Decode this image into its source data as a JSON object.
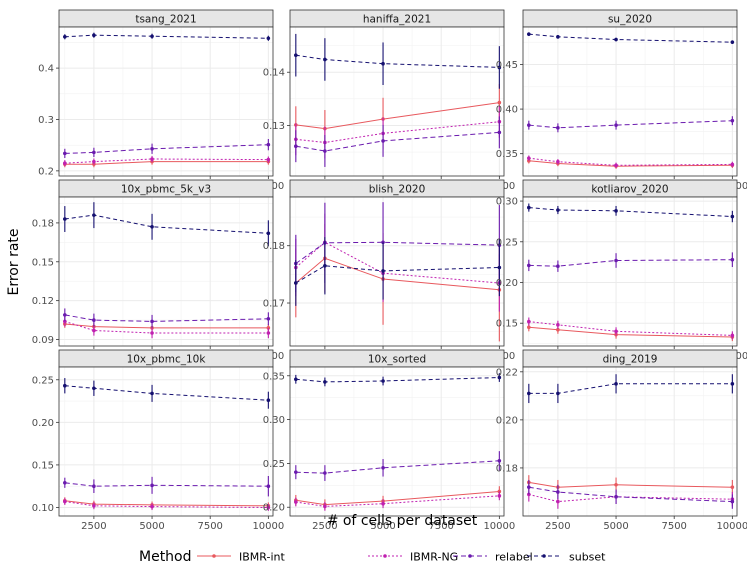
{
  "chart_data": {
    "type": "line",
    "layout": "facet-grid-3x3",
    "ylabel": "Error rate",
    "xlabel": "# of cells per dataset",
    "x": [
      1250,
      2500,
      5000,
      10000
    ],
    "x_ticks": [
      2500,
      5000,
      7500,
      10000
    ],
    "x_tick_labels": [
      "2500",
      "5000",
      "7500",
      "10000"
    ],
    "xlim": [
      1000,
      10200
    ],
    "legend": {
      "title": "Method",
      "position": "bottom",
      "entries": [
        "IBMR-int",
        "IBMR-NG",
        "relabel",
        "subset"
      ]
    },
    "series_styles": [
      {
        "name": "IBMR-int",
        "color": "#E8595E",
        "dash": ""
      },
      {
        "name": "IBMR-NG",
        "color": "#C020B0",
        "dash": "2,2"
      },
      {
        "name": "relabel",
        "color": "#6A1AAE",
        "dash": "5,3"
      },
      {
        "name": "subset",
        "color": "#151070",
        "dash": "4,3"
      }
    ],
    "panels": [
      {
        "title": "tsang_2021",
        "ylim": [
          0.19,
          0.48
        ],
        "y_ticks": [
          0.2,
          0.3,
          0.4
        ],
        "y_tick_labels": [
          "0.2",
          "0.3",
          "0.4"
        ],
        "series": [
          {
            "name": "IBMR-int",
            "values": [
              0.213,
              0.213,
              0.218,
              0.218
            ],
            "err": [
              0.006,
              0.006,
              0.006,
              0.006
            ]
          },
          {
            "name": "IBMR-NG",
            "values": [
              0.215,
              0.218,
              0.223,
              0.222
            ],
            "err": [
              0.006,
              0.006,
              0.006,
              0.006
            ]
          },
          {
            "name": "relabel",
            "values": [
              0.234,
              0.236,
              0.243,
              0.251
            ],
            "err": [
              0.009,
              0.009,
              0.01,
              0.011
            ]
          },
          {
            "name": "subset",
            "values": [
              0.461,
              0.464,
              0.462,
              0.458
            ],
            "err": [
              0.005,
              0.005,
              0.005,
              0.005
            ]
          }
        ]
      },
      {
        "title": "haniffa_2021",
        "ylim": [
          0.1205,
          0.1485
        ],
        "y_ticks": [
          0.13,
          0.14
        ],
        "y_tick_labels": [
          "0.13",
          "0.14"
        ],
        "series": [
          {
            "name": "IBMR-int",
            "values": [
              0.1301,
              0.1294,
              0.1312,
              0.1343
            ],
            "err": [
              0.0035,
              0.0035,
              0.004,
              0.0035
            ]
          },
          {
            "name": "IBMR-NG",
            "values": [
              0.1274,
              0.1268,
              0.1285,
              0.1307
            ],
            "err": [
              0.003,
              0.003,
              0.003,
              0.003
            ]
          },
          {
            "name": "relabel",
            "values": [
              0.1261,
              0.1252,
              0.1271,
              0.1287
            ],
            "err": [
              0.003,
              0.003,
              0.003,
              0.003
            ]
          },
          {
            "name": "subset",
            "values": [
              0.1432,
              0.1424,
              0.1416,
              0.1409
            ],
            "err": [
              0.004,
              0.004,
              0.004,
              0.004
            ]
          }
        ]
      },
      {
        "title": "su_2020",
        "ylim": [
          0.325,
          0.492
        ],
        "y_ticks": [
          0.35,
          0.4,
          0.45
        ],
        "y_tick_labels": [
          "0.35",
          "0.40",
          "0.45"
        ],
        "series": [
          {
            "name": "IBMR-int",
            "values": [
              0.342,
              0.339,
              0.336,
              0.337
            ],
            "err": [
              0.003,
              0.003,
              0.003,
              0.003
            ]
          },
          {
            "name": "IBMR-NG",
            "values": [
              0.345,
              0.341,
              0.337,
              0.338
            ],
            "err": [
              0.003,
              0.003,
              0.003,
              0.003
            ]
          },
          {
            "name": "relabel",
            "values": [
              0.382,
              0.379,
              0.382,
              0.387
            ],
            "err": [
              0.005,
              0.005,
              0.005,
              0.005
            ]
          },
          {
            "name": "subset",
            "values": [
              0.484,
              0.481,
              0.478,
              0.475
            ],
            "err": [
              0.002,
              0.002,
              0.002,
              0.002
            ]
          }
        ]
      },
      {
        "title": "10x_pbmc_5k_v3",
        "ylim": [
          0.085,
          0.2
        ],
        "y_ticks": [
          0.09,
          0.12,
          0.15,
          0.18
        ],
        "y_tick_labels": [
          "0.09",
          "0.12",
          "0.15",
          "0.18"
        ],
        "series": [
          {
            "name": "IBMR-int",
            "values": [
              0.102,
              0.1,
              0.099,
              0.099
            ],
            "err": [
              0.003,
              0.003,
              0.003,
              0.003
            ]
          },
          {
            "name": "IBMR-NG",
            "values": [
              0.104,
              0.097,
              0.095,
              0.095
            ],
            "err": [
              0.004,
              0.004,
              0.004,
              0.004
            ]
          },
          {
            "name": "relabel",
            "values": [
              0.109,
              0.105,
              0.104,
              0.106
            ],
            "err": [
              0.005,
              0.005,
              0.005,
              0.005
            ]
          },
          {
            "name": "subset",
            "values": [
              0.183,
              0.186,
              0.177,
              0.172
            ],
            "err": [
              0.01,
              0.01,
              0.01,
              0.01
            ]
          }
        ]
      },
      {
        "title": "blish_2020",
        "ylim": [
          0.1625,
          0.1885
        ],
        "y_ticks": [
          0.17,
          0.18
        ],
        "y_tick_labels": [
          "0.17",
          "0.18"
        ],
        "series": [
          {
            "name": "IBMR-int",
            "values": [
              0.1735,
              0.1778,
              0.1742,
              0.1723
            ],
            "err": [
              0.006,
              0.006,
              0.008,
              0.009
            ]
          },
          {
            "name": "IBMR-NG",
            "values": [
              0.1762,
              0.1806,
              0.1752,
              0.1735
            ],
            "err": [
              0.005,
              0.005,
              0.005,
              0.005
            ]
          },
          {
            "name": "relabel",
            "values": [
              0.1769,
              0.1805,
              0.1806,
              0.1801
            ],
            "err": [
              0.005,
              0.007,
              0.007,
              0.007
            ]
          },
          {
            "name": "subset",
            "values": [
              0.1735,
              0.1765,
              0.1756,
              0.1762
            ],
            "err": [
              0.004,
              0.005,
              0.005,
              0.005
            ]
          }
        ]
      },
      {
        "title": "kotliarov_2020",
        "ylim": [
          0.122,
          0.305
        ],
        "y_ticks": [
          0.15,
          0.2,
          0.25,
          0.3
        ],
        "y_tick_labels": [
          "0.15",
          "0.20",
          "0.25",
          "0.30"
        ],
        "series": [
          {
            "name": "IBMR-int",
            "values": [
              0.145,
              0.142,
              0.136,
              0.133
            ],
            "err": [
              0.005,
              0.005,
              0.005,
              0.005
            ]
          },
          {
            "name": "IBMR-NG",
            "values": [
              0.152,
              0.148,
              0.14,
              0.135
            ],
            "err": [
              0.005,
              0.005,
              0.005,
              0.005
            ]
          },
          {
            "name": "relabel",
            "values": [
              0.221,
              0.22,
              0.227,
              0.228
            ],
            "err": [
              0.007,
              0.007,
              0.009,
              0.009
            ]
          },
          {
            "name": "subset",
            "values": [
              0.292,
              0.289,
              0.288,
              0.281
            ],
            "err": [
              0.005,
              0.005,
              0.006,
              0.007
            ]
          }
        ]
      },
      {
        "title": "10x_pbmc_10k",
        "ylim": [
          0.09,
          0.265
        ],
        "y_ticks": [
          0.1,
          0.15,
          0.2,
          0.25
        ],
        "y_tick_labels": [
          "0.10",
          "0.15",
          "0.20",
          "0.25"
        ],
        "series": [
          {
            "name": "IBMR-int",
            "values": [
              0.108,
              0.104,
              0.103,
              0.102
            ],
            "err": [
              0.004,
              0.004,
              0.004,
              0.004
            ]
          },
          {
            "name": "IBMR-NG",
            "values": [
              0.107,
              0.102,
              0.101,
              0.1
            ],
            "err": [
              0.004,
              0.004,
              0.004,
              0.004
            ]
          },
          {
            "name": "relabel",
            "values": [
              0.129,
              0.125,
              0.126,
              0.125
            ],
            "err": [
              0.006,
              0.008,
              0.01,
              0.012
            ]
          },
          {
            "name": "subset",
            "values": [
              0.243,
              0.24,
              0.234,
              0.226
            ],
            "err": [
              0.009,
              0.009,
              0.01,
              0.01
            ]
          }
        ]
      },
      {
        "title": "10x_sorted",
        "ylim": [
          0.19,
          0.36
        ],
        "y_ticks": [
          0.2,
          0.25,
          0.3,
          0.35
        ],
        "y_tick_labels": [
          "0.20",
          "0.25",
          "0.30",
          "0.35"
        ],
        "series": [
          {
            "name": "IBMR-int",
            "values": [
              0.208,
              0.203,
              0.207,
              0.218
            ],
            "err": [
              0.006,
              0.006,
              0.006,
              0.006
            ]
          },
          {
            "name": "IBMR-NG",
            "values": [
              0.206,
              0.201,
              0.204,
              0.213
            ],
            "err": [
              0.005,
              0.005,
              0.005,
              0.005
            ]
          },
          {
            "name": "relabel",
            "values": [
              0.24,
              0.239,
              0.245,
              0.253
            ],
            "err": [
              0.008,
              0.009,
              0.01,
              0.011
            ]
          },
          {
            "name": "subset",
            "values": [
              0.346,
              0.343,
              0.344,
              0.348
            ],
            "err": [
              0.005,
              0.005,
              0.005,
              0.005
            ]
          }
        ]
      },
      {
        "title": "ding_2019",
        "ylim": [
          0.16,
          0.222
        ],
        "y_ticks": [
          0.18,
          0.2,
          0.22
        ],
        "y_tick_labels": [
          "0.18",
          "0.20",
          "0.22"
        ],
        "series": [
          {
            "name": "IBMR-int",
            "values": [
              0.174,
              0.172,
              0.173,
              0.172
            ],
            "err": [
              0.003,
              0.003,
              0.003,
              0.003
            ]
          },
          {
            "name": "IBMR-NG",
            "values": [
              0.169,
              0.166,
              0.168,
              0.167
            ],
            "err": [
              0.003,
              0.003,
              0.003,
              0.003
            ]
          },
          {
            "name": "relabel",
            "values": [
              0.172,
              0.17,
              0.168,
              0.166
            ],
            "err": [
              0.003,
              0.003,
              0.003,
              0.003
            ]
          },
          {
            "name": "subset",
            "values": [
              0.211,
              0.211,
              0.215,
              0.215
            ],
            "err": [
              0.004,
              0.004,
              0.004,
              0.004
            ]
          }
        ]
      }
    ]
  }
}
